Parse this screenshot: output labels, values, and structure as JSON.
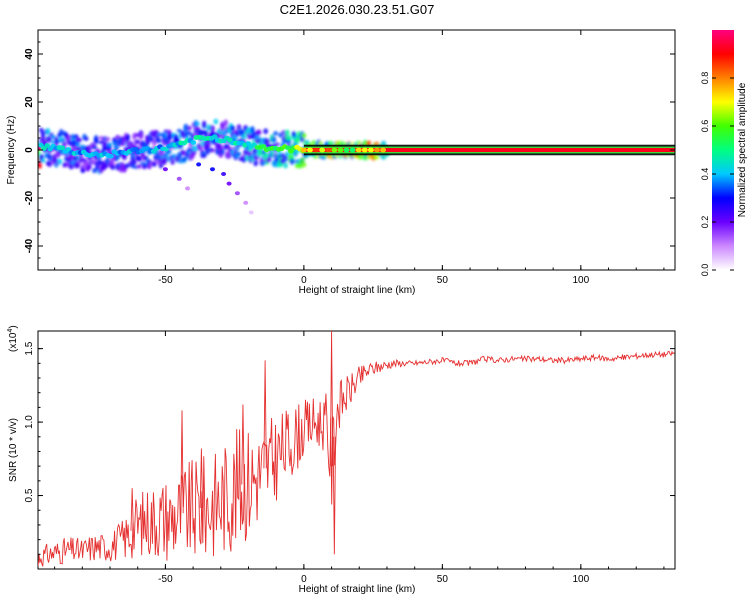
{
  "title": "C2E1.2026.030.23.51.G07",
  "chart_data": [
    {
      "type": "heatmap",
      "xlabel": "Height of straight line (km)",
      "ylabel": "Frequency (Hz)",
      "xlim": [
        -96,
        134
      ],
      "ylim": [
        -50,
        50
      ],
      "x_ticks": [
        -50,
        0,
        50,
        100
      ],
      "y_ticks": [
        -40,
        -20,
        0,
        20,
        40
      ],
      "colorbar": {
        "label": "Normalized spectral amplitude",
        "range": [
          0,
          1
        ],
        "ticks": [
          "0.0",
          "0.2",
          "0.4",
          "0.6",
          "0.8"
        ],
        "colors": [
          "#ffffff",
          "#cc88ff",
          "#6a00ff",
          "#0000ff",
          "#00c8ff",
          "#00ff80",
          "#40ff00",
          "#ffff00",
          "#ff8000",
          "#ff0000",
          "#ff0080"
        ]
      },
      "ridge": [
        {
          "x": -95,
          "f": 1.5,
          "a": 0.45
        },
        {
          "x": -88,
          "f": 0.5,
          "a": 0.45
        },
        {
          "x": -80,
          "f": -1.5,
          "a": 0.4
        },
        {
          "x": -72,
          "f": -2.0,
          "a": 0.4
        },
        {
          "x": -65,
          "f": -1.0,
          "a": 0.4
        },
        {
          "x": -58,
          "f": 0.0,
          "a": 0.4
        },
        {
          "x": -52,
          "f": 0.5,
          "a": 0.4
        },
        {
          "x": -45,
          "f": 2.0,
          "a": 0.45
        },
        {
          "x": -38,
          "f": 4.5,
          "a": 0.45
        },
        {
          "x": -32,
          "f": 5.0,
          "a": 0.45
        },
        {
          "x": -26,
          "f": 4.0,
          "a": 0.45
        },
        {
          "x": -20,
          "f": 2.0,
          "a": 0.5
        },
        {
          "x": -14,
          "f": 1.0,
          "a": 0.55
        },
        {
          "x": -8,
          "f": 0.5,
          "a": 0.6
        },
        {
          "x": -2,
          "f": 0.2,
          "a": 0.65
        },
        {
          "x": 4,
          "f": 0.3,
          "a": 0.75
        },
        {
          "x": 10,
          "f": 0.0,
          "a": 0.85
        },
        {
          "x": 20,
          "f": 0.0,
          "a": 0.95
        },
        {
          "x": 40,
          "f": 0.0,
          "a": 1.0
        },
        {
          "x": 134,
          "f": 0.0,
          "a": 1.0
        }
      ],
      "trail": [
        {
          "x": -38,
          "f": -6,
          "a": 0.3
        },
        {
          "x": -33,
          "f": -8,
          "a": 0.3
        },
        {
          "x": -29,
          "f": -10,
          "a": 0.25
        },
        {
          "x": -27,
          "f": -14,
          "a": 0.2
        },
        {
          "x": -24,
          "f": -18,
          "a": 0.15
        },
        {
          "x": -21,
          "f": -22,
          "a": 0.1
        },
        {
          "x": -19,
          "f": -26,
          "a": 0.05
        },
        {
          "x": -50,
          "f": -8,
          "a": 0.2
        },
        {
          "x": -45,
          "f": -12,
          "a": 0.15
        },
        {
          "x": -42,
          "f": -16,
          "a": 0.1
        }
      ]
    },
    {
      "type": "line",
      "xlabel": "Height of straight line (km)",
      "ylabel": "SNR (10 * v/v)",
      "y_multiplier": "(x10",
      "y_multiplier_exp": "4",
      "y_multiplier_close": ")",
      "xlim": [
        -96,
        134
      ],
      "ylim": [
        0,
        1.62
      ],
      "x_ticks": [
        -50,
        0,
        50,
        100
      ],
      "y_ticks": [
        0.5,
        1.0,
        1.5
      ],
      "y_tick_labels": [
        "0.5",
        "1.0",
        "1.5"
      ],
      "color": "#e53030",
      "x": [
        -96,
        -92,
        -88,
        -84,
        -80,
        -76,
        -72,
        -68,
        -64,
        -60,
        -56,
        -52,
        -48,
        -44,
        -40,
        -36,
        -32,
        -28,
        -24,
        -20,
        -16,
        -12,
        -8,
        -4,
        0,
        4,
        8,
        10,
        12,
        16,
        20,
        24,
        28,
        32,
        36,
        40,
        45,
        50,
        55,
        60,
        65,
        70,
        75,
        80,
        85,
        90,
        95,
        100,
        105,
        110,
        115,
        120,
        125,
        130,
        134
      ],
      "mean": [
        0.08,
        0.1,
        0.12,
        0.13,
        0.12,
        0.15,
        0.15,
        0.17,
        0.22,
        0.3,
        0.33,
        0.35,
        0.35,
        0.38,
        0.4,
        0.42,
        0.45,
        0.5,
        0.55,
        0.6,
        0.65,
        0.72,
        0.8,
        0.88,
        0.95,
        1.0,
        1.0,
        0.7,
        1.1,
        1.2,
        1.3,
        1.36,
        1.38,
        1.4,
        1.4,
        1.4,
        1.41,
        1.42,
        1.4,
        1.4,
        1.43,
        1.42,
        1.43,
        1.43,
        1.43,
        1.42,
        1.42,
        1.43,
        1.44,
        1.43,
        1.44,
        1.45,
        1.46,
        1.46,
        1.47
      ],
      "amp": [
        0.07,
        0.08,
        0.09,
        0.09,
        0.09,
        0.1,
        0.1,
        0.12,
        0.16,
        0.22,
        0.25,
        0.28,
        0.3,
        0.33,
        0.35,
        0.36,
        0.38,
        0.4,
        0.42,
        0.4,
        0.35,
        0.32,
        0.28,
        0.25,
        0.2,
        0.18,
        0.2,
        0.35,
        0.18,
        0.12,
        0.08,
        0.05,
        0.04,
        0.03,
        0.02,
        0.02,
        0.02,
        0.02,
        0.02,
        0.02,
        0.02,
        0.02,
        0.02,
        0.02,
        0.02,
        0.02,
        0.02,
        0.02,
        0.02,
        0.02,
        0.02,
        0.02,
        0.02,
        0.02,
        0.02
      ],
      "peaks": [
        {
          "x": -44,
          "y": 1.08
        },
        {
          "x": -37,
          "y": 0.82
        },
        {
          "x": -22,
          "y": 1.12
        },
        {
          "x": -14,
          "y": 1.42
        },
        {
          "x": 10,
          "y": 1.62
        },
        {
          "x": 11,
          "y": 0.1
        },
        {
          "x": -62,
          "y": 0.55
        },
        {
          "x": -96,
          "y": 0.02
        }
      ]
    }
  ]
}
